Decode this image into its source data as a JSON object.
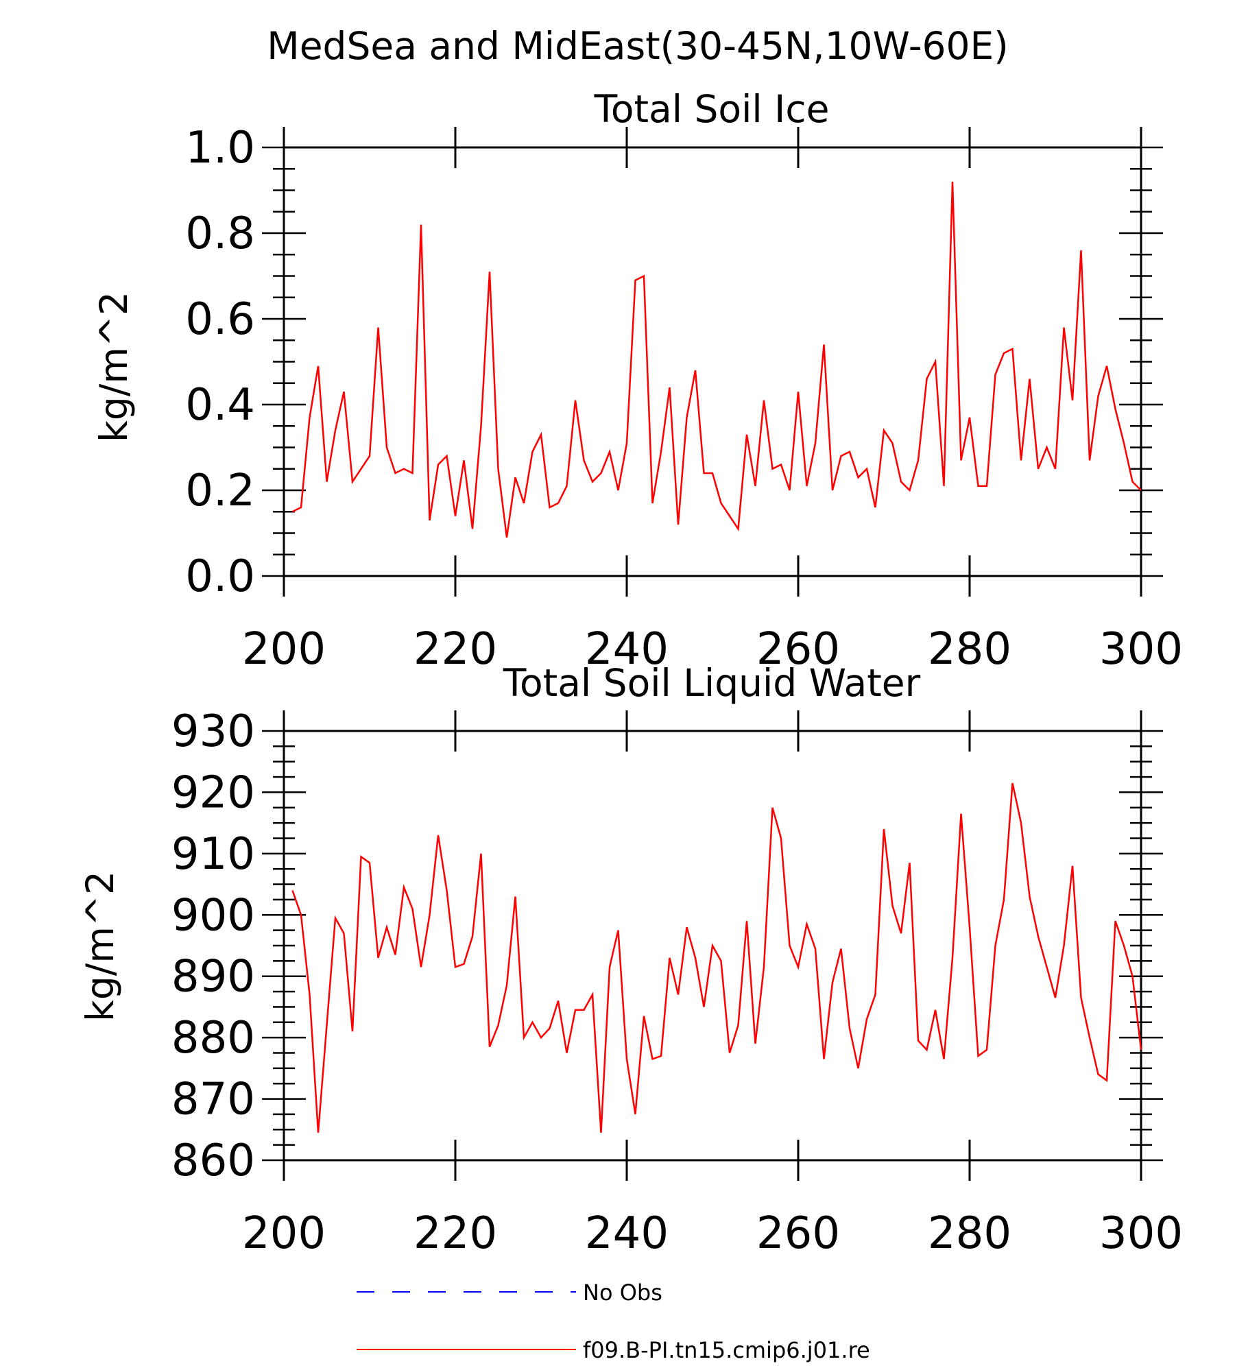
{
  "figure": {
    "title": "MedSea and MidEast(30-45N,10W-60E)"
  },
  "legend": {
    "entries": [
      {
        "label": "No Obs",
        "color": "#0000ff",
        "style": "dashed"
      },
      {
        "label": "f09.B-PI.tn15.cmip6.j01.re",
        "color": "#ff0000",
        "style": "solid"
      }
    ]
  },
  "chart_data": [
    {
      "type": "line",
      "title": "Total Soil Ice",
      "xlabel": "",
      "ylabel": "kg/m^2",
      "xlim": [
        200,
        300
      ],
      "ylim": [
        0.0,
        1.0
      ],
      "xticks": [
        "200",
        "220",
        "240",
        "260",
        "280",
        "300"
      ],
      "yticks": [
        "0.0",
        "0.2",
        "0.4",
        "0.6",
        "0.8",
        "1.0"
      ],
      "series": [
        {
          "color": "#ff0000",
          "x_start": 201,
          "values": [
            0.15,
            0.16,
            0.37,
            0.49,
            0.22,
            0.34,
            0.43,
            0.22,
            0.25,
            0.28,
            0.58,
            0.3,
            0.24,
            0.25,
            0.24,
            0.82,
            0.13,
            0.26,
            0.28,
            0.14,
            0.27,
            0.11,
            0.35,
            0.71,
            0.25,
            0.09,
            0.23,
            0.17,
            0.29,
            0.33,
            0.16,
            0.17,
            0.21,
            0.41,
            0.27,
            0.22,
            0.24,
            0.29,
            0.2,
            0.31,
            0.69,
            0.7,
            0.17,
            0.29,
            0.44,
            0.12,
            0.37,
            0.48,
            0.24,
            0.24,
            0.17,
            0.14,
            0.11,
            0.33,
            0.21,
            0.41,
            0.25,
            0.26,
            0.2,
            0.43,
            0.21,
            0.31,
            0.54,
            0.2,
            0.28,
            0.29,
            0.23,
            0.25,
            0.16,
            0.34,
            0.31,
            0.22,
            0.2,
            0.27,
            0.46,
            0.5,
            0.21,
            0.92,
            0.27,
            0.37,
            0.21,
            0.21,
            0.47,
            0.52,
            0.53,
            0.27,
            0.46,
            0.25,
            0.3,
            0.25,
            0.58,
            0.41,
            0.76,
            0.27,
            0.42,
            0.49,
            0.39,
            0.31,
            0.22,
            0.2
          ]
        }
      ]
    },
    {
      "type": "line",
      "title": "Total Soil Liquid Water",
      "xlabel": "",
      "ylabel": "kg/m^2",
      "xlim": [
        200,
        300
      ],
      "ylim": [
        860,
        930
      ],
      "xticks": [
        "200",
        "220",
        "240",
        "260",
        "280",
        "300"
      ],
      "yticks": [
        "860",
        "870",
        "880",
        "890",
        "900",
        "910",
        "920",
        "930"
      ],
      "series": [
        {
          "color": "#ff0000",
          "x_start": 201,
          "values": [
            904,
            900,
            887,
            864.5,
            882,
            899.5,
            897,
            881,
            909.5,
            908.5,
            893,
            898,
            893.5,
            904.5,
            901,
            891.5,
            900,
            913,
            904,
            891.5,
            892,
            896.5,
            910,
            878.5,
            882,
            888.5,
            903,
            880,
            882.5,
            880,
            881.5,
            886,
            877.5,
            884.5,
            884.5,
            887,
            864.5,
            891.5,
            897.5,
            876.5,
            867.5,
            883.5,
            876.5,
            877,
            893,
            887,
            898,
            893,
            885,
            895,
            892.5,
            877.5,
            882,
            899,
            879,
            891.5,
            917.5,
            912.5,
            895,
            891.5,
            898.5,
            894.5,
            876.5,
            889,
            894.5,
            881.5,
            875,
            883,
            887,
            914,
            901.5,
            897,
            908.5,
            879.5,
            878,
            884.5,
            876.5,
            893,
            916.5,
            898,
            877,
            878,
            895,
            902.5,
            921.5,
            915,
            903,
            896.5,
            891.5,
            886.5,
            895,
            908,
            886.5,
            880,
            874,
            873,
            899,
            895,
            890,
            878
          ]
        }
      ]
    }
  ]
}
